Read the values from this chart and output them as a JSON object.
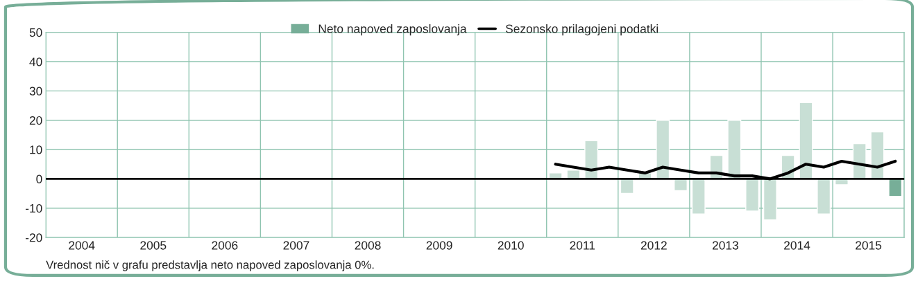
{
  "chart_data": {
    "type": "bar",
    "legend": "top",
    "grid": true,
    "annotations": [
      "Vrednost nič v grafu predstavlja neto napoved zaposlovanja 0%."
    ],
    "x": [
      2011.125,
      2011.375,
      2011.625,
      2011.875,
      2012.125,
      2012.375,
      2012.625,
      2012.875,
      2013.125,
      2013.375,
      2013.625,
      2013.875,
      2014.125,
      2014.375,
      2014.625,
      2014.875,
      2015.125,
      2015.375,
      2015.625,
      2015.875
    ],
    "series": [
      {
        "name": "Neto napoved zaposlovanja",
        "color": "#77ae98",
        "colors": [
          "#c8dfd5",
          "#c8dfd5",
          "#c8dfd5",
          "#c8dfd5",
          "#c8dfd5",
          "#c8dfd5",
          "#c8dfd5",
          "#c8dfd5",
          "#c8dfd5",
          "#c8dfd5",
          "#c8dfd5",
          "#c8dfd5",
          "#c8dfd5",
          "#c8dfd5",
          "#c8dfd5",
          "#c8dfd5",
          "#c8dfd5",
          "#c8dfd5",
          "#c8dfd5",
          "#77ae98"
        ],
        "values": [
          2,
          3,
          13,
          null,
          -5,
          2,
          20,
          -4,
          -12,
          8,
          20,
          -11,
          -14,
          8,
          26,
          -12,
          -2,
          12,
          16,
          -6
        ]
      },
      {
        "name": "Sezonsko prilagojeni podatki",
        "type": "line",
        "color": "#000000",
        "values": [
          5,
          4,
          3,
          4,
          3,
          2,
          4,
          3,
          2,
          2,
          1,
          1,
          0,
          2,
          5,
          4,
          6,
          5,
          4,
          6
        ]
      }
    ],
    "ref_lines": [
      {
        "axis": "y",
        "value": 0,
        "color": "#000000"
      }
    ],
    "xlim": [
      2004,
      2016
    ],
    "xticks": [
      {
        "value": 2004,
        "label": null
      },
      {
        "value": 2004.5,
        "label": "2004"
      },
      {
        "value": 2005,
        "label": null
      },
      {
        "value": 2005.5,
        "label": "2005"
      },
      {
        "value": 2006,
        "label": null
      },
      {
        "value": 2006.5,
        "label": "2006"
      },
      {
        "value": 2007,
        "label": null
      },
      {
        "value": 2007.5,
        "label": "2007"
      },
      {
        "value": 2008,
        "label": null
      },
      {
        "value": 2008.5,
        "label": "2008"
      },
      {
        "value": 2009,
        "label": null
      },
      {
        "value": 2009.5,
        "label": "2009"
      },
      {
        "value": 2010,
        "label": null
      },
      {
        "value": 2010.5,
        "label": "2010"
      },
      {
        "value": 2011,
        "label": null
      },
      {
        "value": 2011.5,
        "label": "2011"
      },
      {
        "value": 2012,
        "label": null
      },
      {
        "value": 2012.5,
        "label": "2012"
      },
      {
        "value": 2013,
        "label": null
      },
      {
        "value": 2013.5,
        "label": "2013"
      },
      {
        "value": 2014,
        "label": null
      },
      {
        "value": 2014.5,
        "label": "2014"
      },
      {
        "value": 2015,
        "label": null
      },
      {
        "value": 2015.5,
        "label": "2015"
      },
      {
        "value": 2016,
        "label": null
      }
    ],
    "ylim": [
      -20,
      50
    ],
    "yticks": [
      -20,
      -10,
      0,
      10,
      20,
      30,
      40,
      50
    ]
  }
}
